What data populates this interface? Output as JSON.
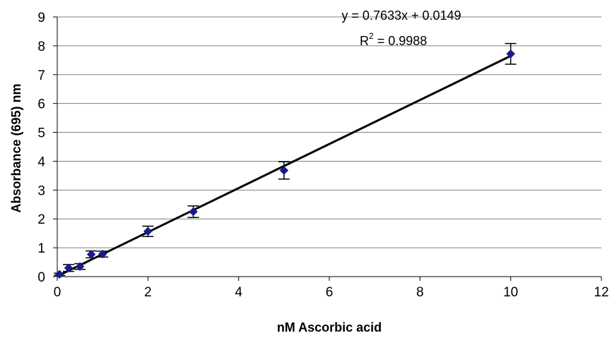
{
  "chart_data": {
    "type": "scatter",
    "title": "",
    "xlabel": "nM Ascorbic acid",
    "ylabel": "Absorbance (695) nm",
    "xlim": [
      0,
      12
    ],
    "ylim": [
      0,
      9
    ],
    "xticks": [
      "0",
      "2",
      "4",
      "6",
      "8",
      "10",
      "12"
    ],
    "yticks": [
      "0",
      "1",
      "2",
      "3",
      "4",
      "5",
      "6",
      "7",
      "8",
      "9"
    ],
    "grid": "horizontal",
    "legend": "none",
    "marker_color": "#1a1a8c",
    "line_color": "#000000",
    "series": [
      {
        "points": [
          {
            "x": 0.05,
            "y": 0.08,
            "err": 0.04
          },
          {
            "x": 0.25,
            "y": 0.3,
            "err": 0.12
          },
          {
            "x": 0.5,
            "y": 0.35,
            "err": 0.1
          },
          {
            "x": 0.75,
            "y": 0.77,
            "err": 0.12
          },
          {
            "x": 1.0,
            "y": 0.78,
            "err": 0.1
          },
          {
            "x": 2.0,
            "y": 1.57,
            "err": 0.18
          },
          {
            "x": 3.0,
            "y": 2.25,
            "err": 0.2
          },
          {
            "x": 5.0,
            "y": 3.68,
            "err": 0.3
          },
          {
            "x": 10.0,
            "y": 7.72,
            "err": 0.36
          }
        ]
      }
    ],
    "trendline": {
      "slope": 0.7633,
      "intercept": 0.0149,
      "x_range": [
        0,
        10
      ]
    },
    "annotations": {
      "equation": "y = 0.7633x + 0.0149",
      "r2_prefix": "R",
      "r2_sup": "2",
      "r2_value": " = 0.9988"
    }
  }
}
